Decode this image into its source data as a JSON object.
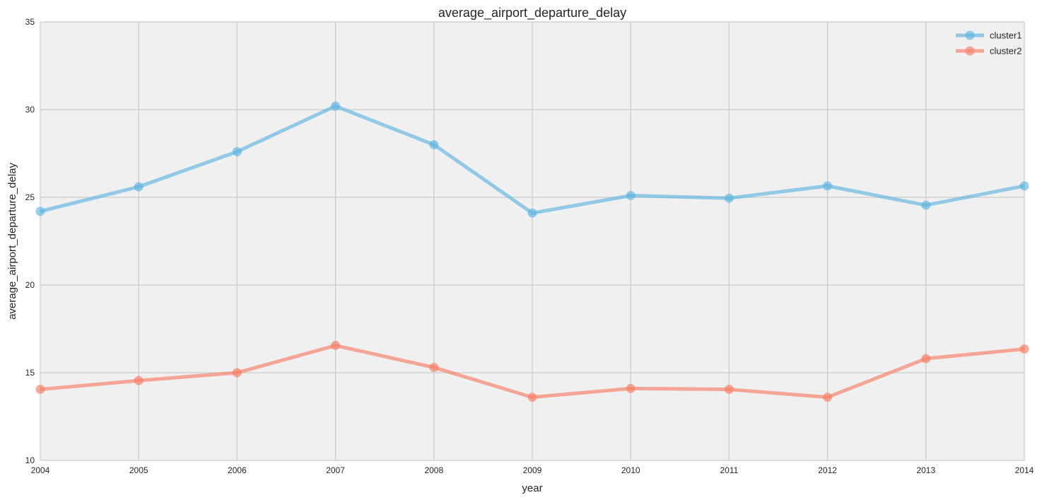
{
  "chart_data": {
    "type": "line",
    "title": "average_airport_departure_delay",
    "xlabel": "year",
    "ylabel": "average_airport_departure_delay",
    "x": [
      2004,
      2005,
      2006,
      2007,
      2008,
      2009,
      2010,
      2011,
      2012,
      2013,
      2014
    ],
    "xlim": [
      2004,
      2014
    ],
    "ylim": [
      10,
      35
    ],
    "yticks": [
      10,
      15,
      20,
      25,
      30,
      35
    ],
    "xticks": [
      2004,
      2005,
      2006,
      2007,
      2008,
      2009,
      2010,
      2011,
      2012,
      2013,
      2014
    ],
    "grid": true,
    "legend_position": "top-right",
    "series": [
      {
        "name": "cluster1",
        "color": "#5DB4E0",
        "values": [
          24.2,
          25.6,
          27.6,
          30.2,
          28.0,
          24.1,
          25.1,
          24.95,
          25.65,
          24.55,
          25.65
        ]
      },
      {
        "name": "cluster2",
        "color": "#F87C64",
        "values": [
          14.05,
          14.55,
          15.0,
          16.55,
          15.3,
          13.6,
          14.1,
          14.05,
          13.6,
          15.8,
          16.35
        ]
      }
    ],
    "background_color": "#F0F0F0",
    "grid_color": "#CBCBCB"
  }
}
